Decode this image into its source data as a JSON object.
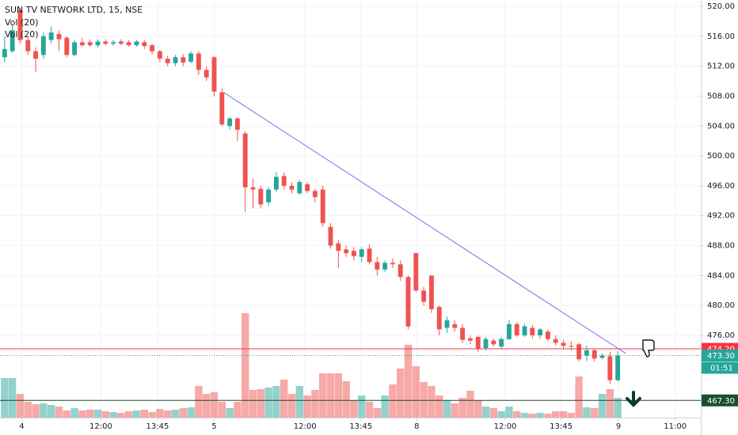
{
  "chart_data": {
    "type": "candlestick",
    "title": "SUN TV NETWORK LTD, 15, NSE",
    "indicators": [
      "Vol (20)",
      "Vol (20)"
    ],
    "up_color": "#26a69a",
    "down_color": "#ef5350",
    "open": [
      513.2,
      514,
      519.5,
      515.5,
      514,
      513.5,
      515.5,
      516.3,
      515.8,
      513.5,
      515.2,
      515.2,
      514.8,
      515.3,
      515,
      515.3,
      515.2,
      514.8,
      515.2,
      514.8,
      514,
      513,
      512.4,
      513.2,
      512.6,
      513.7,
      511.5,
      513.2,
      508.5,
      504,
      505,
      503,
      495.8,
      495.6,
      493.8,
      495.5,
      497.3,
      496,
      495,
      496.2,
      495.3,
      495.5,
      490.5,
      488.3,
      487.5,
      487.3,
      486.5,
      487.6,
      485.8,
      484.8,
      485.7,
      485.5,
      483.8,
      487,
      482,
      484,
      479.8,
      477,
      477.5,
      477,
      475.6,
      475.8,
      474.3,
      475.3,
      474.5,
      475.5,
      477.5,
      476,
      477,
      476,
      476.5,
      475.5,
      475,
      474.6,
      474.8,
      473.3,
      474,
      473,
      473.2,
      470
    ],
    "high": [
      516,
      517.5,
      519.8,
      516,
      514.5,
      516.5,
      517.3,
      516.8,
      516,
      515.5,
      515.8,
      515.6,
      515.6,
      515.6,
      515.5,
      515.6,
      515.5,
      515.5,
      515.5,
      515,
      514.2,
      513.4,
      513.5,
      513.6,
      514,
      514,
      512,
      513.4,
      509,
      505.2,
      505.2,
      503.3,
      497,
      496,
      495.8,
      497.8,
      497.8,
      496.5,
      496.8,
      496.5,
      495.6,
      496,
      491,
      488.8,
      488,
      487.8,
      487.8,
      488.2,
      486.5,
      486,
      486.3,
      486,
      484,
      487,
      482.5,
      484,
      480,
      478.5,
      478,
      477.5,
      476,
      476,
      475.8,
      475.6,
      475.8,
      478,
      477.8,
      477.5,
      477.4,
      477,
      476.8,
      476,
      475.4,
      475.2,
      475,
      474.6,
      474.2,
      473.6,
      473.8,
      473.9
    ],
    "low": [
      512.5,
      513.8,
      515,
      513.5,
      511.2,
      513,
      515,
      514,
      513.2,
      513.3,
      514.6,
      514.6,
      514.5,
      514.8,
      514.7,
      514.8,
      514.6,
      514.6,
      514.3,
      513.6,
      512.5,
      512,
      512,
      512,
      512.4,
      510.8,
      510,
      508,
      504,
      503.5,
      502,
      492.5,
      493,
      493,
      493.3,
      495.2,
      495.5,
      495,
      494.8,
      495,
      493.8,
      490.5,
      487.6,
      485,
      486.5,
      486,
      485.8,
      485.5,
      484,
      484.5,
      485,
      483.3,
      476.8,
      481.8,
      480,
      479,
      476,
      476.3,
      476.5,
      475,
      474.8,
      473.8,
      474,
      474.5,
      474.2,
      475.4,
      475.8,
      475.8,
      475.6,
      475.5,
      475.2,
      474.6,
      474.2,
      474,
      472.5,
      472.6,
      472.5,
      472.8,
      469.5,
      469.8
    ],
    "close": [
      514.3,
      516.8,
      515.5,
      514,
      513,
      516,
      516.5,
      515.6,
      513.5,
      515.2,
      514.8,
      514.8,
      515.3,
      515,
      515.2,
      515,
      514.8,
      515.3,
      514.7,
      514,
      513,
      512.4,
      513.2,
      512.5,
      513.7,
      511.5,
      510.5,
      508.6,
      504.2,
      505,
      503.5,
      495.8,
      495.5,
      493.5,
      495.5,
      497.2,
      496,
      495.5,
      496.5,
      495.3,
      494.5,
      491,
      488,
      487.3,
      487,
      486.6,
      487.5,
      485.8,
      484.8,
      485.7,
      485.5,
      483.8,
      477.2,
      482,
      480.5,
      479.5,
      476.8,
      478,
      477,
      475.4,
      475.3,
      474.2,
      475.5,
      474.8,
      475.5,
      477.5,
      476,
      477.2,
      476,
      476.8,
      475.5,
      475,
      474.6,
      474.5,
      472.8,
      474,
      472.9,
      473.3,
      470,
      473.3
    ],
    "volume": [
      50,
      50,
      30,
      20,
      17,
      18,
      16,
      14,
      9,
      12,
      9,
      10,
      10,
      8,
      7,
      6,
      8,
      9,
      10,
      7,
      11,
      9,
      10,
      12,
      13,
      40,
      30,
      32,
      20,
      12,
      20,
      132,
      35,
      36,
      38,
      40,
      48,
      30,
      40,
      28,
      35,
      56,
      56,
      56,
      46,
      22,
      28,
      20,
      12,
      28,
      42,
      62,
      92,
      65,
      45,
      40,
      28,
      22,
      18,
      25,
      34,
      22,
      14,
      12,
      8,
      14,
      8,
      6,
      5,
      6,
      5,
      8,
      8,
      6,
      52,
      13,
      12,
      30,
      36,
      25
    ],
    "xlim": [
      -0.6,
      89.7
    ],
    "xticks": [
      {
        "value": 2.2,
        "label": "4"
      },
      {
        "value": 12.4,
        "label": "12:00"
      },
      {
        "value": 19.7,
        "label": "13:45"
      },
      {
        "value": 27.0,
        "label": "5"
      },
      {
        "value": 38.7,
        "label": "12:00"
      },
      {
        "value": 45.9,
        "label": "13:45"
      },
      {
        "value": 53.1,
        "label": "8"
      },
      {
        "value": 64.5,
        "label": "12:00"
      },
      {
        "value": 71.7,
        "label": "13:45"
      },
      {
        "value": 79.1,
        "label": "9"
      },
      {
        "value": 86.4,
        "label": "11:00"
      }
    ],
    "ylim": [
      465.0,
      520.85
    ],
    "yticks": [
      {
        "value": 476,
        "label": "476.00"
      },
      {
        "value": 480,
        "label": "480.00"
      },
      {
        "value": 484,
        "label": "484.00"
      },
      {
        "value": 488,
        "label": "488.00"
      },
      {
        "value": 492,
        "label": "492.00"
      },
      {
        "value": 496,
        "label": "496.00"
      },
      {
        "value": 500,
        "label": "500.00"
      },
      {
        "value": 504,
        "label": "504.00"
      },
      {
        "value": 508,
        "label": "508.00"
      },
      {
        "value": 512,
        "label": "512.00"
      },
      {
        "value": 516,
        "label": "516.00"
      },
      {
        "value": 520,
        "label": "520.00"
      }
    ],
    "grid": true,
    "trendline": {
      "x": [
        28.2,
        80.0
      ],
      "y": [
        508.5,
        473.6
      ],
      "color": "#7072e8"
    },
    "levels": [
      {
        "value": 474.2,
        "label": "474.20",
        "color": "#f23645",
        "style": "solid"
      },
      {
        "value": 473.3,
        "label": "473.30",
        "color": "#26a69a",
        "style": "dotted"
      },
      {
        "value": 467.3,
        "label": "467.30",
        "color": "#1b4d2e",
        "style": "solid"
      }
    ],
    "countdown": "01:51"
  }
}
